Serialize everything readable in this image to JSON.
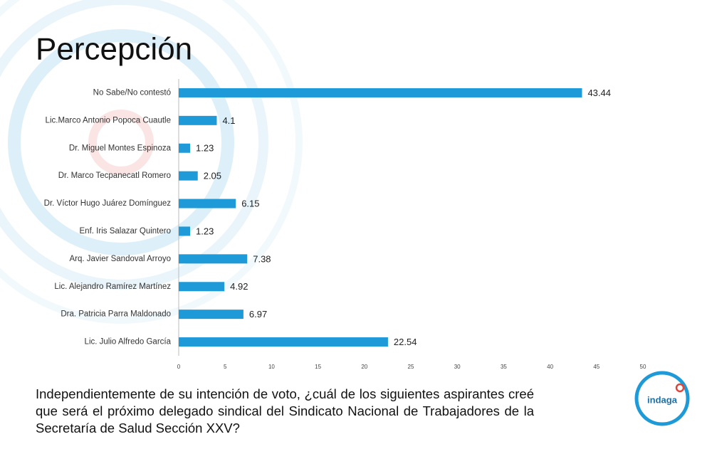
{
  "chart_data": {
    "type": "bar",
    "orientation": "horizontal",
    "title": "Percepción",
    "categories": [
      "No Sabe/No contestó",
      "Lic.Marco Antonio Popoca Cuautle",
      "Dr. Miguel Montes Espinoza",
      "Dr. Marco Tecpanecatl Romero",
      "Dr. Víctor Hugo Juárez Domínguez",
      "Enf. Iris Salazar Quintero",
      "Arq. Javier Sandoval Arroyo",
      "Lic. Alejandro Ramírez Martínez",
      "Dra. Patricia Parra Maldonado",
      "Lic. Julio Alfredo García"
    ],
    "values": [
      43.44,
      4.1,
      1.23,
      2.05,
      6.15,
      1.23,
      7.38,
      4.92,
      6.97,
      22.54
    ],
    "color": "#1e9ad8",
    "xlim": [
      0,
      50
    ],
    "xticks": [
      0,
      5,
      10,
      15,
      20,
      25,
      30,
      35,
      40,
      45,
      50
    ],
    "grid": false,
    "question": "Independientemente de su intención de voto, ¿cuál de los siguientes aspirantes creé que será el próximo delegado sindical del Sindicato Nacional de Trabajadores de la Secretaría de Salud Sección XXV?"
  },
  "logo": {
    "text": "indaga"
  }
}
